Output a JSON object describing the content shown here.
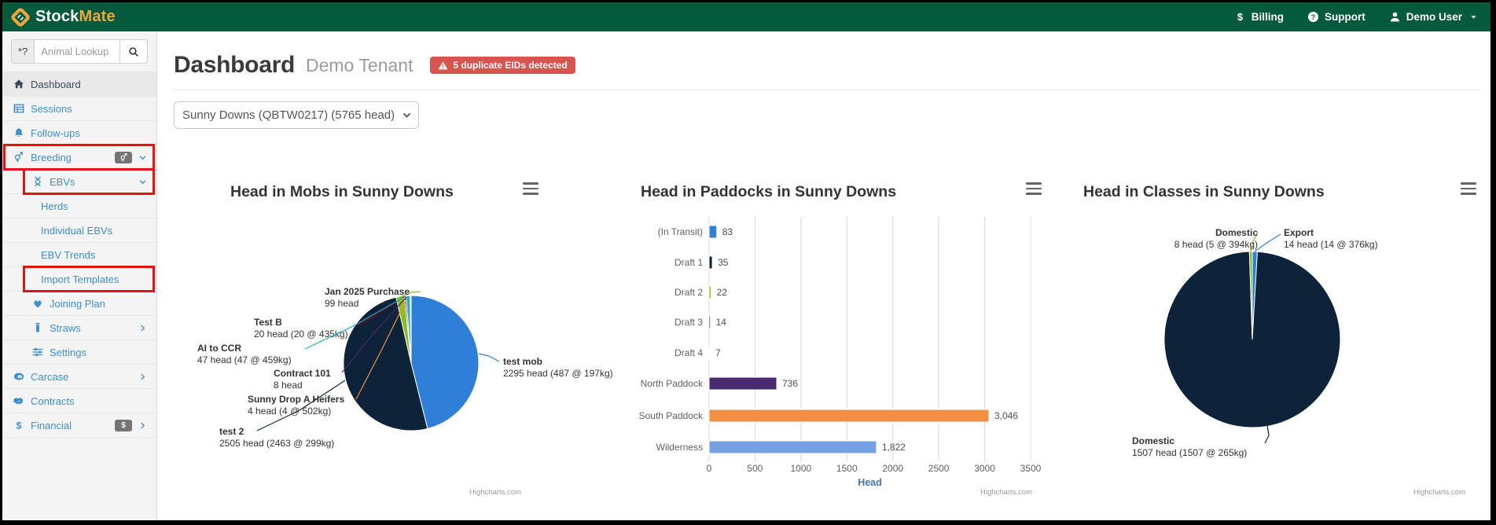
{
  "topbar": {
    "brand_stock": "Stock",
    "brand_mate": "Mate",
    "billing_label": "Billing",
    "support_label": "Support",
    "user_label": "Demo User"
  },
  "sidebar": {
    "search": {
      "addon": "*?",
      "placeholder": "Animal Lookup"
    },
    "items": [
      {
        "label": "Dashboard",
        "icon": "home",
        "indent": 0,
        "active": true
      },
      {
        "label": "Sessions",
        "icon": "table",
        "indent": 0
      },
      {
        "label": "Follow-ups",
        "icon": "bell",
        "indent": 0
      },
      {
        "label": "Breeding",
        "icon": "venus-mars",
        "indent": 0,
        "chevron": "down",
        "badge_icon": "venus-mars",
        "highlight": true
      },
      {
        "label": "EBVs",
        "icon": "dna",
        "indent": 1,
        "chevron": "down",
        "highlight": true
      },
      {
        "label": "Herds",
        "indent": 2
      },
      {
        "label": "Individual EBVs",
        "indent": 2
      },
      {
        "label": "EBV Trends",
        "indent": 2
      },
      {
        "label": "Import Templates",
        "indent": 2,
        "highlight": true
      },
      {
        "label": "Joining Plan",
        "icon": "heart",
        "indent": 1
      },
      {
        "label": "Straws",
        "icon": "vial",
        "indent": 1,
        "chevron": "right"
      },
      {
        "label": "Settings",
        "icon": "sliders",
        "indent": 1
      },
      {
        "label": "Carcase",
        "icon": "meat",
        "indent": 0,
        "chevron": "right"
      },
      {
        "label": "Contracts",
        "icon": "handshake",
        "indent": 0
      },
      {
        "label": "Financial",
        "icon": "dollar",
        "indent": 0,
        "chevron": "right",
        "badge_text": "$"
      }
    ]
  },
  "header": {
    "title": "Dashboard",
    "tenant": "Demo Tenant",
    "alert": "5 duplicate EIDs detected"
  },
  "filters": {
    "property": "Sunny Downs (QBTW0217) (5765 head)"
  },
  "chart_data": [
    {
      "type": "pie",
      "title": "Head in Mobs in Sunny Downs",
      "credits": "Highcharts.com",
      "legend": "none",
      "series": [
        {
          "name": "test mob",
          "value": 2295,
          "sub": "2295 head (487 @ 197kg)",
          "color": "#2f7ed8"
        },
        {
          "name": "test 2",
          "value": 2505,
          "sub": "2505 head (2463 @ 299kg)",
          "color": "#0d233a"
        },
        {
          "name": "Jan 2025 Purchase",
          "value": 99,
          "sub": "99 head",
          "color": "#8bbc21"
        },
        {
          "name": "Test B",
          "value": 20,
          "sub": "20 head (20 @ 435kg)",
          "color": "#910000"
        },
        {
          "name": "AI to CCR",
          "value": 47,
          "sub": "47 head (47 @ 459kg)",
          "color": "#1aadce"
        },
        {
          "name": "Contract 101",
          "value": 8,
          "sub": "8 head",
          "color": "#492970"
        },
        {
          "name": "Sunny Drop A Heifers",
          "value": 4,
          "sub": "4 head (4 @ 502kg)",
          "color": "#f28f43"
        }
      ]
    },
    {
      "type": "bar",
      "title": "Head in Paddocks in Sunny Downs",
      "credits": "Highcharts.com",
      "categories": [
        "(In Transit)",
        "Draft 1",
        "Draft 2",
        "Draft 3",
        "Draft 4",
        "North Paddock",
        "South Paddock",
        "Wilderness"
      ],
      "values": [
        83,
        35,
        22,
        14,
        7,
        736,
        3046,
        1822
      ],
      "value_labels": [
        "83",
        "35",
        "22",
        "14",
        "7",
        "736",
        "3,046",
        "1,822"
      ],
      "colors": [
        "#2f7ed8",
        "#0d233a",
        "#8bbc21",
        "#910000",
        "#1aadce",
        "#492970",
        "#f28f43",
        "#77a1e5"
      ],
      "xlabel": "Head",
      "xticks": [
        0,
        500,
        1000,
        1500,
        2000,
        2500,
        3000,
        3500
      ],
      "xlim": [
        0,
        3500
      ],
      "grid": true
    },
    {
      "type": "pie",
      "title": "Head in Classes in Sunny Downs",
      "credits": "Highcharts.com",
      "legend": "none",
      "series": [
        {
          "name": "Export",
          "value": 14,
          "sub": "14 head (14 @ 376kg)",
          "color": "#2f7ed8"
        },
        {
          "name": "Domestic",
          "value": 1507,
          "sub": "1507 head (1507 @ 265kg)",
          "color": "#0d233a"
        },
        {
          "name": "Domestic",
          "value": 8,
          "sub": "8 head (5 @ 394kg)",
          "color": "#8bbc21"
        }
      ]
    }
  ]
}
